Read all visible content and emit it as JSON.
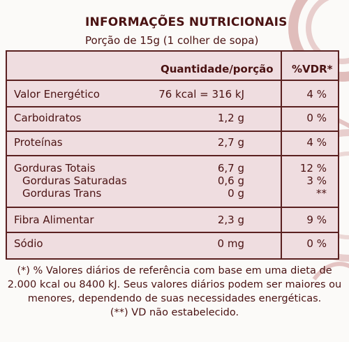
{
  "label": {
    "title": "INFORMAÇÕES NUTRICIONAIS",
    "serving": "Porção de 15g (1 colher de sopa)"
  },
  "table": {
    "headers": {
      "quantity": "Quantidade/porção",
      "dv": "%VDR*"
    },
    "rows": [
      {
        "name": "Valor Energético",
        "quantity": "76 kcal = 316 kJ",
        "dv": "4 %"
      },
      {
        "name": "Carboidratos",
        "quantity": "1,2 g",
        "dv": "0 %"
      },
      {
        "name": "Proteínas",
        "quantity": "2,7 g",
        "dv": "4 %"
      },
      {
        "name": "Gorduras Totais",
        "quantity": "6,7 g",
        "dv": "12 %"
      },
      {
        "name": "Gorduras Saturadas",
        "quantity": "0,6 g",
        "dv": "3 %"
      },
      {
        "name": "Gorduras Trans",
        "quantity": "0 g",
        "dv": "**"
      },
      {
        "name": "Fibra Alimentar",
        "quantity": "2,3 g",
        "dv": "9 %"
      },
      {
        "name": "Sódio",
        "quantity": "0 mg",
        "dv": "0 %"
      }
    ]
  },
  "footnotes": {
    "line1": "(*) % Valores diários de referência com base em uma dieta de",
    "line2": "2.000 kcal ou 8400 kJ. Seus valores diários podem ser maiores ou",
    "line3": "menores, dependendo de suas necessidades energéticas.",
    "line4": "(**) VD não estabelecido."
  },
  "colors": {
    "text": "#4a1212",
    "table_bg": "#efdde0",
    "border": "#5a2020",
    "decor": "#b04a4a"
  }
}
